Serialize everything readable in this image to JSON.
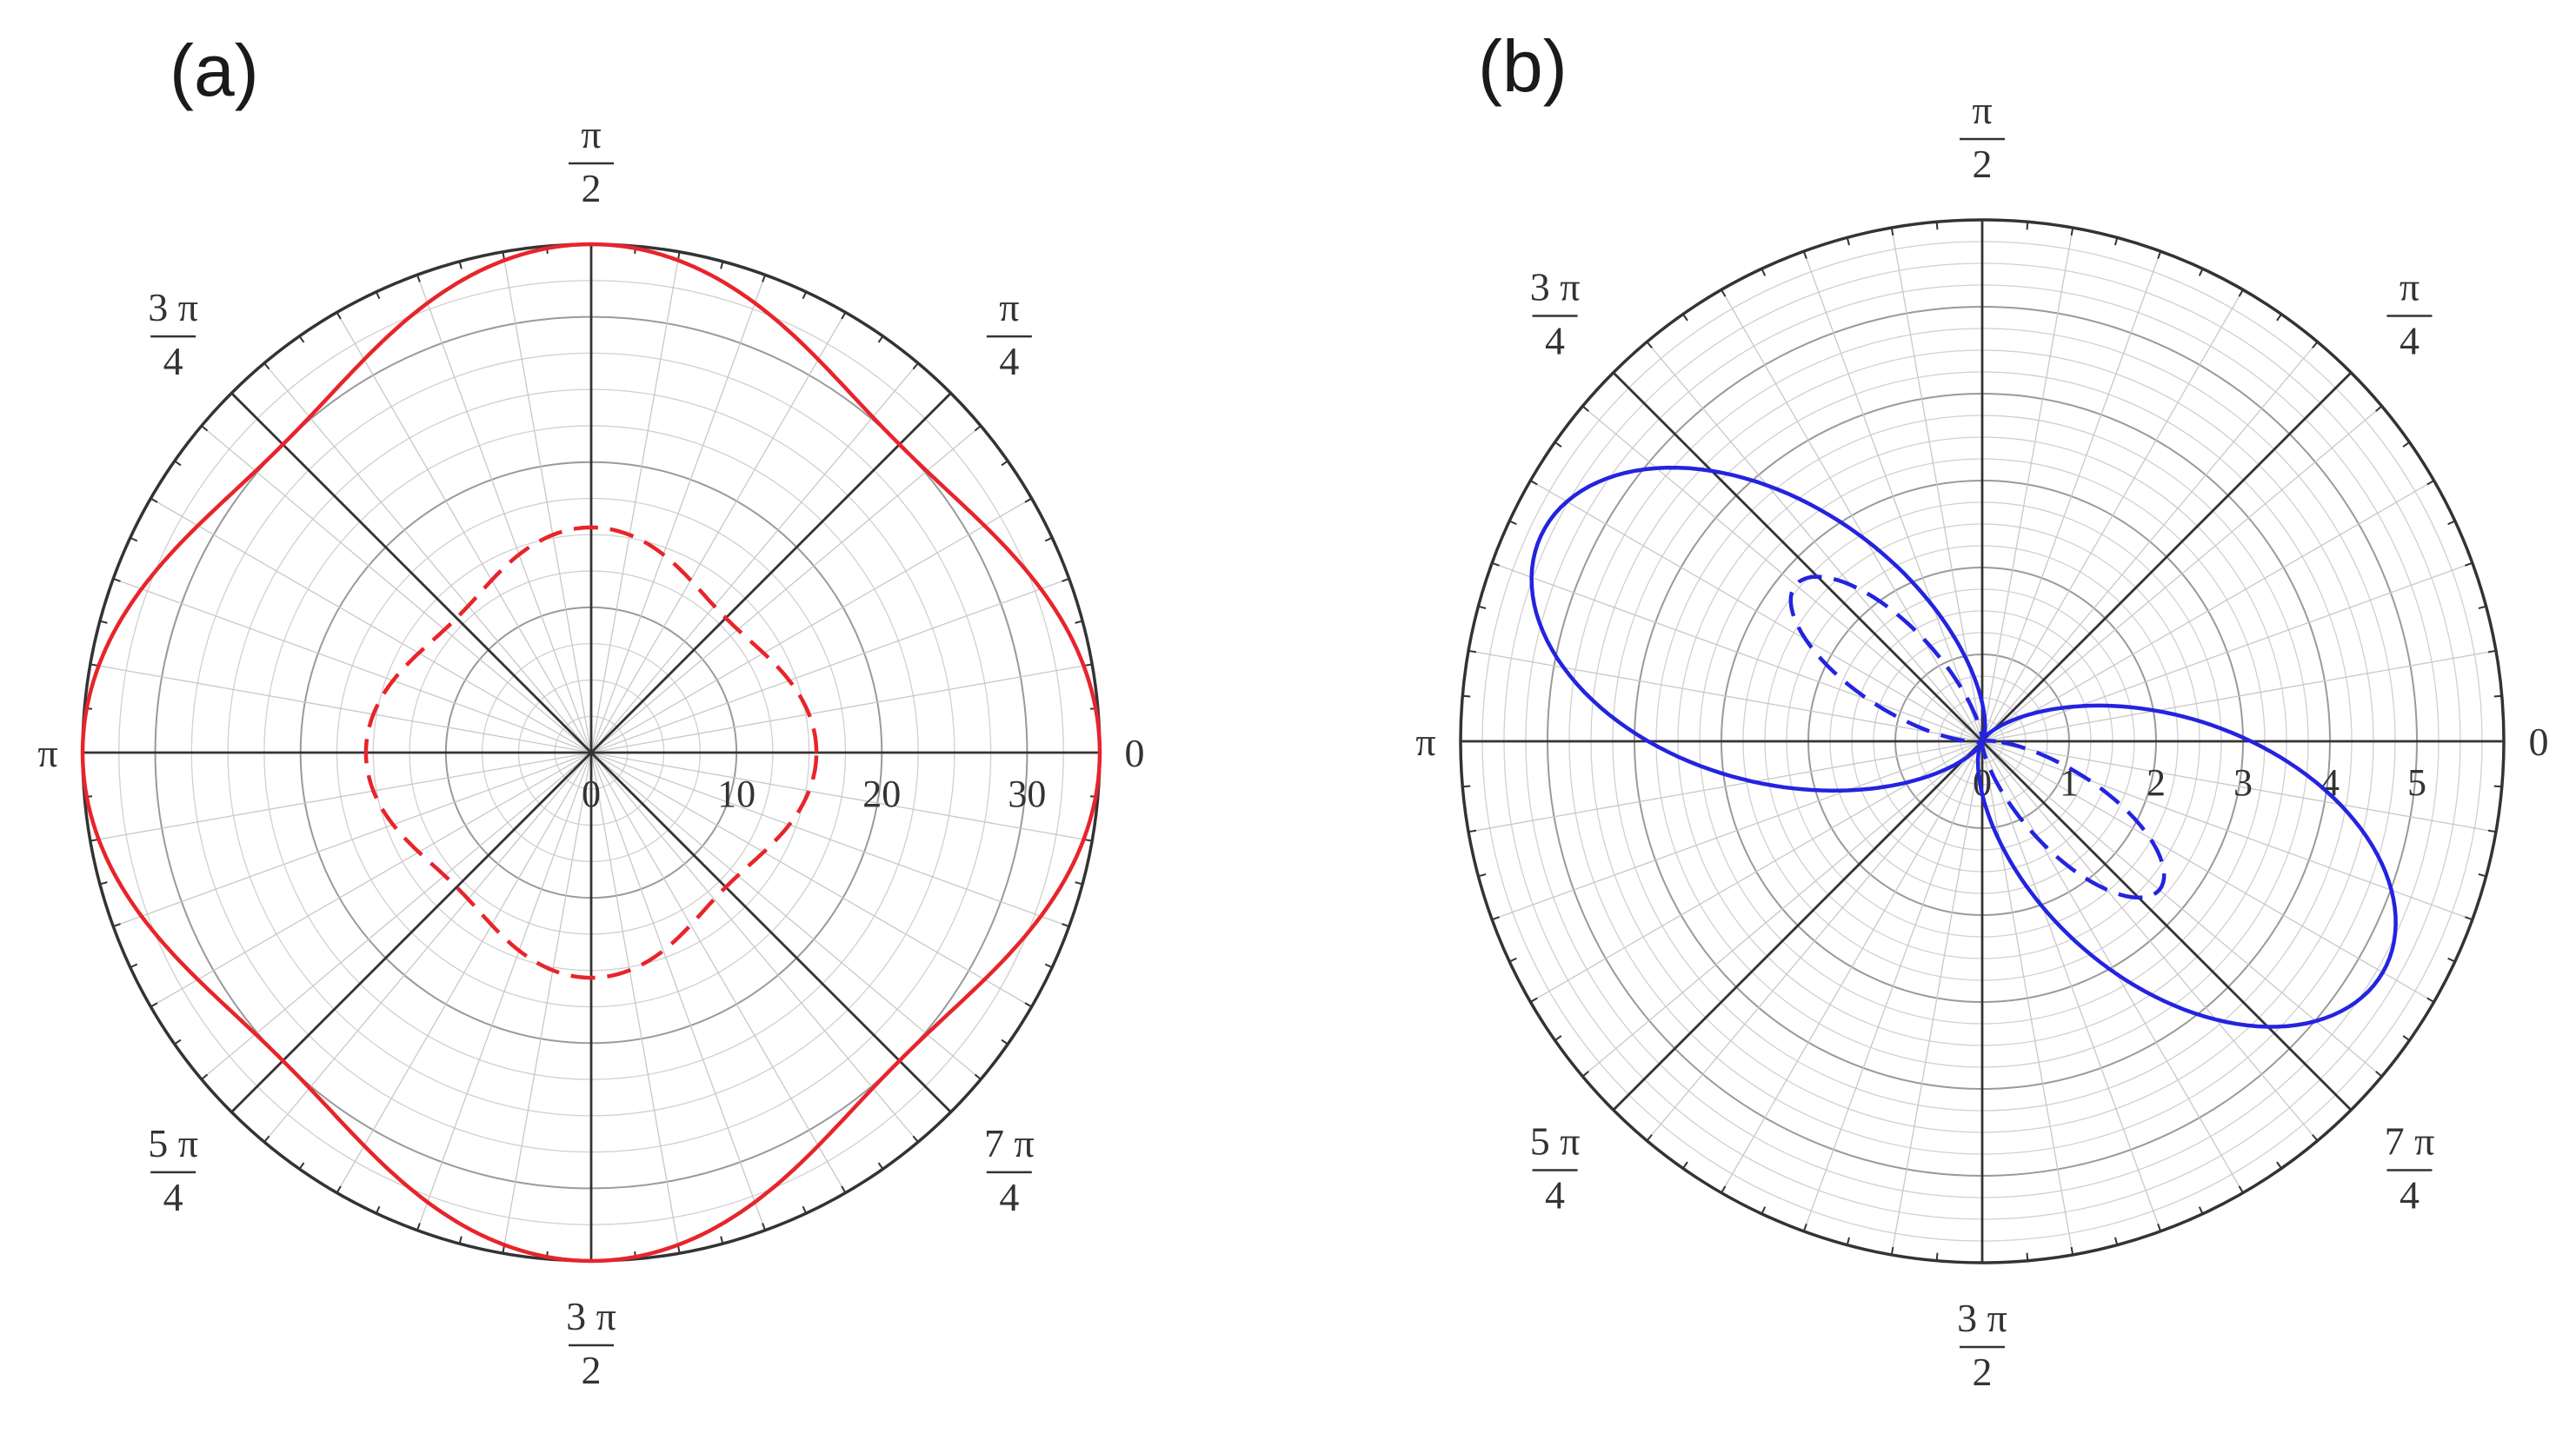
{
  "chart_data": [
    {
      "type": "line",
      "coordinate_system": "polar",
      "panel_label": "(a)",
      "angle_labels": [
        {
          "angle_deg": 0,
          "num": "0",
          "den": ""
        },
        {
          "angle_deg": 45,
          "num": "π",
          "den": "4"
        },
        {
          "angle_deg": 90,
          "num": "π",
          "den": "2"
        },
        {
          "angle_deg": 135,
          "num": "3 π",
          "den": "4"
        },
        {
          "angle_deg": 180,
          "num": "π",
          "den": ""
        },
        {
          "angle_deg": 225,
          "num": "5 π",
          "den": "4"
        },
        {
          "angle_deg": 270,
          "num": "3 π",
          "den": "2"
        },
        {
          "angle_deg": 315,
          "num": "7 π",
          "den": "4"
        }
      ],
      "radial_ticks": [
        "0",
        "10",
        "20",
        "30"
      ],
      "radial_tick_values": [
        0,
        10,
        20,
        30
      ],
      "rlim": [
        0,
        35
      ],
      "grid": true,
      "series": [
        {
          "style": "solid",
          "color": "#e8242b",
          "r_base": 32.5,
          "r_amp": 2.5,
          "lobes": 4,
          "phase_deg": 0
        },
        {
          "style": "dashed",
          "color": "#e8242b",
          "r_base": 14.3,
          "r_amp": 1.2,
          "lobes": 4,
          "phase_deg": 0
        }
      ]
    },
    {
      "type": "line",
      "coordinate_system": "polar",
      "panel_label": "(b)",
      "angle_labels": [
        {
          "angle_deg": 0,
          "num": "0",
          "den": ""
        },
        {
          "angle_deg": 45,
          "num": "π",
          "den": "4"
        },
        {
          "angle_deg": 90,
          "num": "π",
          "den": "2"
        },
        {
          "angle_deg": 135,
          "num": "3 π",
          "den": "4"
        },
        {
          "angle_deg": 180,
          "num": "π",
          "den": ""
        },
        {
          "angle_deg": 225,
          "num": "5 π",
          "den": "4"
        },
        {
          "angle_deg": 270,
          "num": "3 π",
          "den": "2"
        },
        {
          "angle_deg": 315,
          "num": "7 π",
          "den": "4"
        }
      ],
      "radial_ticks": [
        "0",
        "1",
        "2",
        "3",
        "4",
        "5"
      ],
      "radial_tick_values": [
        0,
        1,
        2,
        3,
        4,
        5
      ],
      "rlim": [
        0,
        6
      ],
      "grid": true,
      "series": [
        {
          "style": "solid",
          "color": "#2323e0",
          "peak": 5.6,
          "lobe_axis_deg": [
            155,
            330
          ],
          "width": 2.4,
          "neck": 0.35
        },
        {
          "style": "dashed",
          "color": "#2323e0",
          "peak": 2.8,
          "lobe_axis_deg": [
            140,
            320
          ],
          "width": 1.4,
          "neck": 0.08
        }
      ]
    }
  ]
}
